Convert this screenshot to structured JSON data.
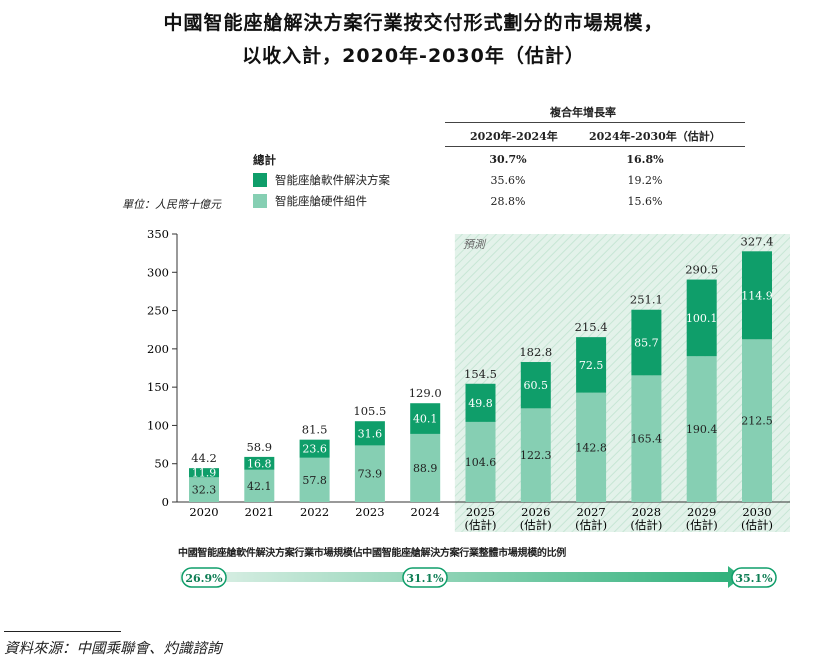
{
  "title_line1": "中國智能座艙解決方案行業按交付形式劃分的市場規模，",
  "title_line2": "以收入計，2020年-2030年（估計）",
  "cagr": {
    "header": "複合年增長率",
    "col1": "2020年-2024年",
    "col2": "2024年-2030年（估計）",
    "rows": [
      {
        "label": "總計",
        "v1": "30.7%",
        "v2": "16.8%"
      },
      {
        "label": "智能座艙軟件解決方案",
        "v1": "35.6%",
        "v2": "19.2%"
      },
      {
        "label": "智能座艙硬件組件",
        "v1": "28.8%",
        "v2": "15.6%"
      }
    ]
  },
  "unit_label": "單位：人民幣十億元",
  "forecast_label": "預測",
  "share_caption": "中國智能座艙軟件解決方案行業市場規模佔中國智能座艙解決方案行業整體市場規模的比例",
  "share_values": [
    "26.9%",
    "31.1%",
    "35.1%"
  ],
  "source": "資料來源：中國乘聯會、灼識諮詢",
  "colors": {
    "software": "#0f9e6a",
    "hardware": "#86cfb3",
    "forecast_bg": "#e3f2ea",
    "axis": "#333333"
  },
  "chart_data": {
    "type": "bar",
    "stacked": true,
    "categories": [
      "2020",
      "2021",
      "2022",
      "2023",
      "2024",
      "2025\n(估計)",
      "2026\n(估計)",
      "2027\n(估計)",
      "2028\n(估計)",
      "2029\n(估計)",
      "2030\n(估計)"
    ],
    "series": [
      {
        "name": "智能座艙硬件組件",
        "values": [
          32.3,
          42.1,
          57.8,
          73.9,
          88.9,
          104.6,
          122.3,
          142.8,
          165.4,
          190.4,
          212.5
        ]
      },
      {
        "name": "智能座艙軟件解決方案",
        "values": [
          11.9,
          16.8,
          23.6,
          31.6,
          40.1,
          49.8,
          60.5,
          72.5,
          85.7,
          100.1,
          114.9
        ]
      }
    ],
    "totals": [
      44.2,
      58.9,
      81.5,
      105.5,
      129.0,
      154.5,
      182.8,
      215.4,
      251.1,
      290.5,
      327.4
    ],
    "ylim": [
      0,
      350
    ],
    "yticks": [
      0,
      50,
      100,
      150,
      200,
      250,
      300,
      350
    ],
    "forecast_start_index": 5
  }
}
